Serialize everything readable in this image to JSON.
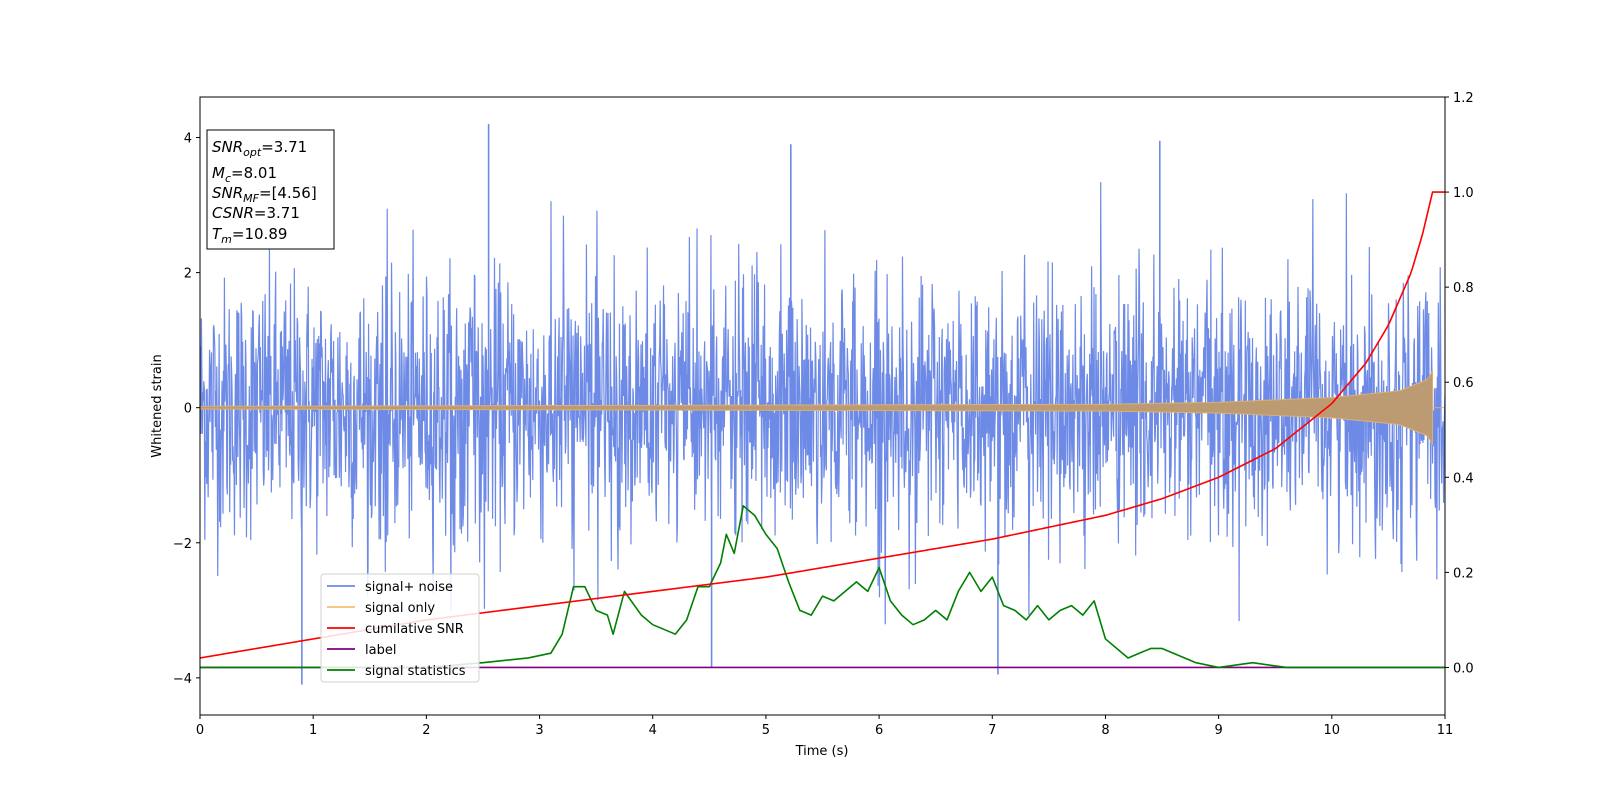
{
  "chart_data": {
    "type": "line",
    "xlabel": "Time (s)",
    "ylabel": "Whitened strain",
    "xlim": [
      0,
      11
    ],
    "ylim_left": [
      -4.55,
      4.6
    ],
    "ylim_right": [
      -0.1,
      1.2
    ],
    "x_ticks": [
      0,
      1,
      2,
      3,
      4,
      5,
      6,
      7,
      8,
      9,
      10,
      11
    ],
    "y_ticks_left": [
      -4,
      -2,
      0,
      2,
      4
    ],
    "y_ticks_left_labels": [
      "−4",
      "−2",
      "0",
      "2",
      "4"
    ],
    "y_ticks_right": [
      0.0,
      0.2,
      0.4,
      0.6,
      0.8,
      1.0,
      1.2
    ],
    "y_ticks_right_labels": [
      "0.0",
      "0.2",
      "0.4",
      "0.6",
      "0.8",
      "1.0",
      "1.2"
    ],
    "grid": false,
    "legend_position": "lower-left",
    "annotation": {
      "lines": [
        {
          "main": "SNR",
          "sub": "opt",
          "value": "=3.71"
        },
        {
          "main": "M",
          "sub": "c",
          "value": "=8.01"
        },
        {
          "main": "SNR",
          "sub": "MF",
          "value": "=[4.56]"
        },
        {
          "main": "CSNR",
          "sub": "",
          "value": "=3.71"
        },
        {
          "main": "T",
          "sub": "m",
          "value": "=10.89"
        }
      ]
    },
    "series": [
      {
        "name": "signal+ noise",
        "axis": "left",
        "color": "#6d8ae6",
        "noise_band": [
          {
            "x": 0,
            "upper": 1.6,
            "lower": -1.6,
            "peak_hi": 2.8,
            "peak_lo": -2.8
          },
          {
            "x": 11,
            "upper": 1.6,
            "lower": -1.6,
            "peak_hi": 3.9,
            "peak_lo": -3.5
          }
        ],
        "notable_peaks": [
          {
            "x": 0.9,
            "y": -4.1
          },
          {
            "x": 2.55,
            "y": 4.2
          },
          {
            "x": 4.52,
            "y": -3.85
          },
          {
            "x": 5.22,
            "y": 3.9
          },
          {
            "x": 7.05,
            "y": -3.95
          },
          {
            "x": 8.48,
            "y": 3.95
          }
        ]
      },
      {
        "name": "signal only",
        "axis": "left",
        "color": "#f5c06e",
        "envelope": [
          {
            "x": 0,
            "amp": 0.02
          },
          {
            "x": 8,
            "amp": 0.05
          },
          {
            "x": 9,
            "amp": 0.08
          },
          {
            "x": 10,
            "amp": 0.15
          },
          {
            "x": 10.6,
            "amp": 0.25
          },
          {
            "x": 10.85,
            "amp": 0.42
          },
          {
            "x": 10.89,
            "amp": 0.55
          },
          {
            "x": 10.9,
            "amp": 0.0
          }
        ]
      },
      {
        "name": "cumilative SNR",
        "axis": "right",
        "color": "#ff0000",
        "x": [
          0,
          1,
          2,
          3,
          4,
          5,
          6,
          7,
          8,
          8.5,
          9,
          9.5,
          10,
          10.3,
          10.5,
          10.7,
          10.8,
          10.89,
          11
        ],
        "y": [
          0.02,
          0.06,
          0.1,
          0.13,
          0.16,
          0.19,
          0.23,
          0.27,
          0.32,
          0.355,
          0.4,
          0.46,
          0.555,
          0.64,
          0.72,
          0.83,
          0.91,
          1.0,
          1.0
        ]
      },
      {
        "name": "label",
        "axis": "right",
        "color": "#800080",
        "x": [
          0,
          11
        ],
        "y": [
          0.0,
          0.0
        ]
      },
      {
        "name": "signal statistics",
        "axis": "right",
        "color": "#008000",
        "x": [
          0,
          1,
          2,
          2.5,
          2.9,
          3.1,
          3.2,
          3.3,
          3.4,
          3.5,
          3.6,
          3.65,
          3.75,
          3.9,
          4.0,
          4.1,
          4.2,
          4.3,
          4.4,
          4.5,
          4.6,
          4.65,
          4.72,
          4.8,
          4.9,
          5.0,
          5.1,
          5.2,
          5.3,
          5.4,
          5.5,
          5.6,
          5.7,
          5.8,
          5.9,
          6.0,
          6.1,
          6.2,
          6.3,
          6.4,
          6.5,
          6.6,
          6.7,
          6.8,
          6.9,
          7.0,
          7.1,
          7.2,
          7.3,
          7.4,
          7.5,
          7.6,
          7.7,
          7.8,
          7.9,
          8.0,
          8.2,
          8.4,
          8.5,
          8.6,
          8.8,
          9.0,
          9.3,
          9.6,
          10.0,
          10.5,
          11.0
        ],
        "y": [
          0.0,
          0.0,
          0.0,
          0.01,
          0.02,
          0.03,
          0.07,
          0.17,
          0.17,
          0.12,
          0.11,
          0.07,
          0.16,
          0.11,
          0.09,
          0.08,
          0.07,
          0.1,
          0.17,
          0.17,
          0.22,
          0.28,
          0.24,
          0.34,
          0.32,
          0.28,
          0.25,
          0.18,
          0.12,
          0.11,
          0.15,
          0.14,
          0.16,
          0.18,
          0.16,
          0.21,
          0.14,
          0.11,
          0.09,
          0.1,
          0.12,
          0.1,
          0.16,
          0.2,
          0.16,
          0.19,
          0.13,
          0.12,
          0.1,
          0.13,
          0.1,
          0.12,
          0.13,
          0.11,
          0.14,
          0.06,
          0.02,
          0.04,
          0.04,
          0.03,
          0.01,
          0.0,
          0.01,
          0.0,
          0.0,
          0.0,
          0.0
        ]
      }
    ]
  }
}
